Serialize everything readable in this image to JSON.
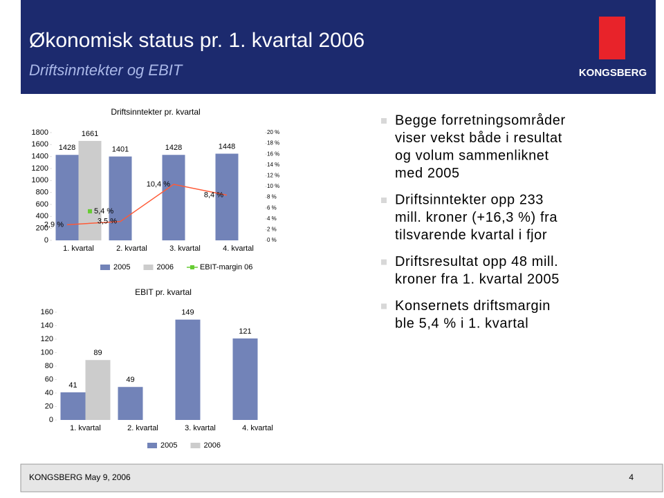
{
  "header": {
    "title": "Økonomisk status pr. 1. kvartal 2006",
    "subtitle": "Driftsinntekter og EBIT",
    "logo": "KONGSBERG"
  },
  "chart_data": [
    {
      "type": "bar",
      "title": "Driftsinntekter pr. kvartal",
      "categories": [
        "1. kvartal",
        "2. kvartal",
        "3. kvartal",
        "4. kvartal"
      ],
      "series": [
        {
          "name": "2005",
          "color": "#7283b8",
          "values": [
            1428,
            1401,
            1428,
            1448
          ]
        },
        {
          "name": "2006",
          "color": "#cccccc",
          "values": [
            1661,
            null,
            null,
            null
          ]
        },
        {
          "type": "line",
          "axis": "y2",
          "color": "#ff5a36",
          "values": [
            2.9,
            3.5,
            10.4,
            8.4
          ],
          "value_labels": [
            "2,9 %",
            "3,5 %",
            "10,4 %",
            "8,4 %"
          ]
        },
        {
          "name": "EBIT-margin 06",
          "type": "line",
          "axis": "y2",
          "color": "#66cc33",
          "values": [
            5.4,
            null,
            null,
            null
          ],
          "value_labels": [
            "5,4 %",
            null,
            null,
            null
          ]
        }
      ],
      "ylim": [
        0,
        1800
      ],
      "yticks": [
        0,
        200,
        400,
        600,
        800,
        1000,
        1200,
        1400,
        1600,
        1800
      ],
      "y2lim": [
        0,
        20
      ],
      "y2ticks": [
        {
          "value": 0,
          "label": "0 %"
        },
        {
          "value": 2,
          "label": "2 %"
        },
        {
          "value": 4,
          "label": "4 %"
        },
        {
          "value": 6,
          "label": "6 %"
        },
        {
          "value": 8,
          "label": "8 %"
        },
        {
          "value": 10,
          "label": "10 %"
        },
        {
          "value": 12,
          "label": "12 %"
        },
        {
          "value": 14,
          "label": "14 %"
        },
        {
          "value": 16,
          "label": "16 %"
        },
        {
          "value": 18,
          "label": "18 %"
        },
        {
          "value": 20,
          "label": "20 %"
        }
      ]
    },
    {
      "type": "bar",
      "title": "EBIT pr. kvartal",
      "categories": [
        "1. kvartal",
        "2. kvartal",
        "3. kvartal",
        "4. kvartal"
      ],
      "series": [
        {
          "name": "2005",
          "color": "#7283b8",
          "values": [
            41,
            49,
            149,
            121
          ]
        },
        {
          "name": "2006",
          "color": "#cccccc",
          "values": [
            89,
            null,
            null,
            null
          ]
        }
      ],
      "ylim": [
        0,
        160
      ],
      "yticks": [
        0,
        20,
        40,
        60,
        80,
        100,
        120,
        140,
        160
      ]
    }
  ],
  "bullets": [
    [
      "Begge forretningsområder",
      "viser vekst både i resultat",
      "og volum sammenliknet",
      "med 2005"
    ],
    [
      "Driftsinntekter opp 233",
      "mill. kroner (+16,3 %) fra",
      "tilsvarende kvartal i fjor"
    ],
    [
      "Driftsresultat opp 48 mill.",
      "kroner fra 1. kvartal 2005"
    ],
    [
      "Konsernets driftsmargin",
      "ble 5,4 % i 1. kvartal"
    ]
  ],
  "footer": {
    "left": "KONGSBERG May 9, 2006",
    "page": "4"
  }
}
